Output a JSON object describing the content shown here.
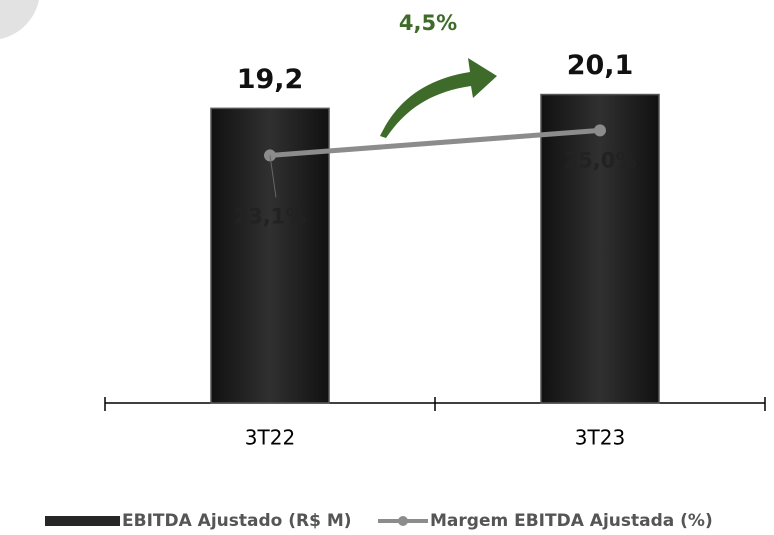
{
  "chart_data": {
    "type": "bar",
    "categories": [
      "3T22",
      "3T23"
    ],
    "series": [
      {
        "name": "EBITDA Ajustado (R$ M)",
        "type": "bar",
        "color": "#262626",
        "values": [
          19.2,
          20.1
        ],
        "value_labels": [
          "19,2",
          "20,1"
        ]
      },
      {
        "name": "Margem EBITDA Ajustada (%)",
        "type": "line",
        "axis": "y2",
        "color": "#8c8c8c",
        "values": [
          23.1,
          25.0
        ],
        "value_labels": [
          "23,1%",
          "25,0%"
        ]
      }
    ],
    "ylim": [
      0,
      26
    ],
    "y2lim": [
      4.3,
      34.6
    ],
    "annotations": [
      "4,5%"
    ],
    "annotation_color": "#3f6b2a",
    "legend": "bottom"
  }
}
